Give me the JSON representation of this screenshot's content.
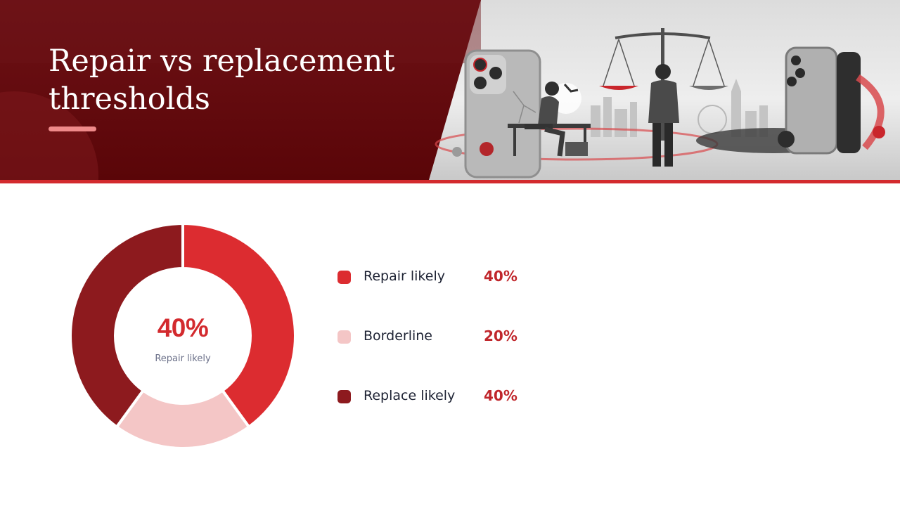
{
  "title": "Repair vs replacement thresholds",
  "colors": {
    "header_dark": "#6b0d10",
    "header_line": "#d32a2e",
    "accent_bar": "#ef8a8a"
  },
  "center": {
    "value": "40%",
    "label": "Repair likely"
  },
  "legend": [
    {
      "label": "Repair likely",
      "value": "40%",
      "color": "#dc2c30"
    },
    {
      "label": "Borderline",
      "value": "20%",
      "color": "#f4c6c6"
    },
    {
      "label": "Replace likely",
      "value": "40%",
      "color": "#8d1a1e"
    }
  ],
  "chart_data": {
    "type": "pie",
    "style": "donut",
    "categories": [
      "Repair likely",
      "Borderline",
      "Replace likely"
    ],
    "values": [
      40,
      20,
      40
    ],
    "unit": "%",
    "colors": [
      "#dc2c30",
      "#f4c6c6",
      "#8d1a1e"
    ],
    "start_angle_deg": 0,
    "direction": "clockwise",
    "legend_position": "right"
  }
}
